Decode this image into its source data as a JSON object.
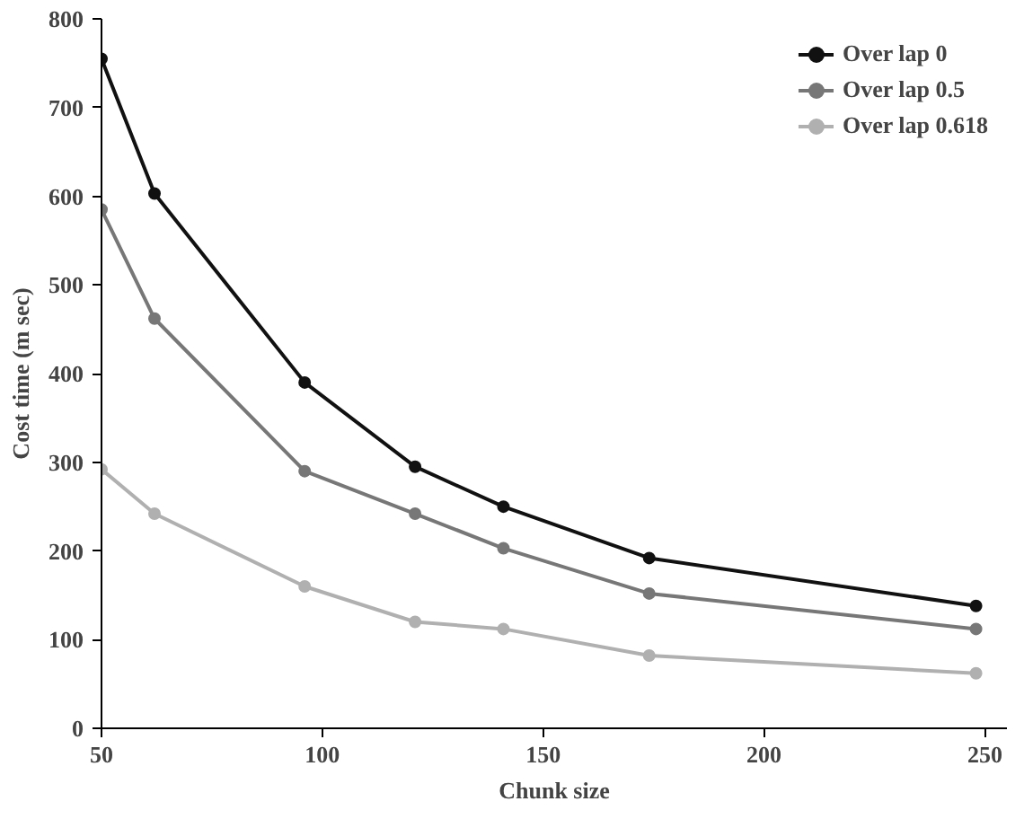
{
  "chart_data": {
    "type": "line",
    "xlabel": "Chunk size",
    "ylabel": "Cost time (m sec)",
    "x": [
      50,
      62,
      96,
      121,
      141,
      174,
      248
    ],
    "series": [
      {
        "name": "Over lap 0",
        "color": "#111111",
        "values": [
          755,
          603,
          390,
          295,
          250,
          192,
          138
        ]
      },
      {
        "name": "Over lap 0.5",
        "color": "#777777",
        "values": [
          585,
          462,
          290,
          242,
          203,
          152,
          112
        ]
      },
      {
        "name": "Over lap 0.618",
        "color": "#b0b0b0",
        "values": [
          292,
          242,
          160,
          120,
          112,
          82,
          62
        ]
      }
    ],
    "xlim": [
      50,
      255
    ],
    "ylim": [
      0,
      800
    ],
    "xticks": [
      50,
      100,
      150,
      200,
      250
    ],
    "yticks": [
      0,
      100,
      200,
      300,
      400,
      500,
      600,
      700,
      800
    ],
    "grid": false,
    "legend": "top right",
    "marker": "circle",
    "line_style": "solid"
  }
}
